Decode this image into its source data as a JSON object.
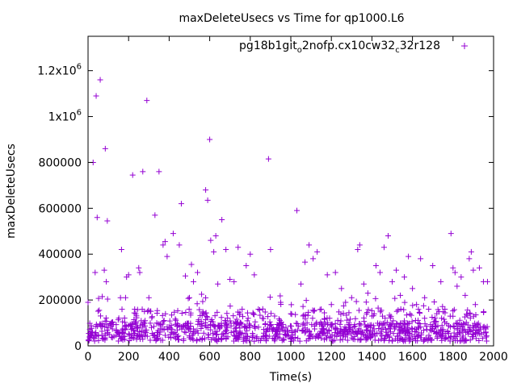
{
  "chart_data": {
    "type": "scatter",
    "title": "maxDeleteUsecs vs Time for qp1000.L6",
    "xlabel": "Time(s)",
    "ylabel": "maxDeleteUsecs",
    "xlim": [
      0,
      2000
    ],
    "ylim": [
      0,
      1350000
    ],
    "x_ticks": [
      {
        "value": 0,
        "label": "0"
      },
      {
        "value": 200,
        "label": "200"
      },
      {
        "value": 400,
        "label": "400"
      },
      {
        "value": 600,
        "label": "600"
      },
      {
        "value": 800,
        "label": "800"
      },
      {
        "value": 1000,
        "label": "1000"
      },
      {
        "value": 1200,
        "label": "1200"
      },
      {
        "value": 1400,
        "label": "1400"
      },
      {
        "value": 1600,
        "label": "1600"
      },
      {
        "value": 1800,
        "label": "1800"
      },
      {
        "value": 2000,
        "label": "2000"
      }
    ],
    "y_ticks": [
      {
        "value": 0,
        "label": "0"
      },
      {
        "value": 200000,
        "label": "200000"
      },
      {
        "value": 400000,
        "label": "400000"
      },
      {
        "value": 600000,
        "label": "600000"
      },
      {
        "value": 800000,
        "label": "800000"
      },
      {
        "value": 1000000,
        "label": "1x10",
        "exp": "6"
      },
      {
        "value": 1200000,
        "label": "1.2x10",
        "exp": "6"
      }
    ],
    "grid": false,
    "legend_position": "top-right",
    "marker": "plus",
    "color": "#9400d3",
    "series": [
      {
        "name_parts": [
          {
            "t": "pg18b1git"
          },
          {
            "t": "o",
            "sub": true
          },
          {
            "t": "2nofp.cx10cw32"
          },
          {
            "t": "c",
            "sub": true
          },
          {
            "t": "32r128"
          }
        ],
        "outliers": [
          [
            0,
            190000
          ],
          [
            25,
            800000
          ],
          [
            35,
            320000
          ],
          [
            40,
            1090000
          ],
          [
            45,
            560000
          ],
          [
            55,
            155000
          ],
          [
            60,
            1160000
          ],
          [
            70,
            215000
          ],
          [
            80,
            330000
          ],
          [
            85,
            860000
          ],
          [
            90,
            280000
          ],
          [
            95,
            545000
          ],
          [
            160,
            210000
          ],
          [
            165,
            420000
          ],
          [
            185,
            210000
          ],
          [
            190,
            300000
          ],
          [
            200,
            310000
          ],
          [
            220,
            745000
          ],
          [
            230,
            160000
          ],
          [
            250,
            340000
          ],
          [
            255,
            320000
          ],
          [
            270,
            760000
          ],
          [
            290,
            1070000
          ],
          [
            300,
            210000
          ],
          [
            330,
            570000
          ],
          [
            350,
            760000
          ],
          [
            370,
            440000
          ],
          [
            380,
            455000
          ],
          [
            390,
            390000
          ],
          [
            420,
            490000
          ],
          [
            450,
            440000
          ],
          [
            460,
            620000
          ],
          [
            480,
            305000
          ],
          [
            500,
            210000
          ],
          [
            510,
            355000
          ],
          [
            520,
            280000
          ],
          [
            540,
            320000
          ],
          [
            560,
            225000
          ],
          [
            580,
            680000
          ],
          [
            590,
            635000
          ],
          [
            600,
            900000
          ],
          [
            605,
            460000
          ],
          [
            620,
            410000
          ],
          [
            630,
            480000
          ],
          [
            640,
            270000
          ],
          [
            660,
            550000
          ],
          [
            680,
            420000
          ],
          [
            700,
            290000
          ],
          [
            720,
            280000
          ],
          [
            740,
            430000
          ],
          [
            760,
            160000
          ],
          [
            780,
            350000
          ],
          [
            800,
            400000
          ],
          [
            820,
            310000
          ],
          [
            840,
            160000
          ],
          [
            860,
            120000
          ],
          [
            890,
            815000
          ],
          [
            900,
            420000
          ],
          [
            920,
            130000
          ],
          [
            950,
            190000
          ],
          [
            1000,
            140000
          ],
          [
            1030,
            590000
          ],
          [
            1050,
            270000
          ],
          [
            1070,
            365000
          ],
          [
            1090,
            440000
          ],
          [
            1110,
            380000
          ],
          [
            1130,
            410000
          ],
          [
            1150,
            160000
          ],
          [
            1180,
            310000
          ],
          [
            1200,
            180000
          ],
          [
            1220,
            320000
          ],
          [
            1250,
            250000
          ],
          [
            1270,
            190000
          ],
          [
            1300,
            210000
          ],
          [
            1330,
            420000
          ],
          [
            1340,
            440000
          ],
          [
            1360,
            270000
          ],
          [
            1380,
            230000
          ],
          [
            1400,
            130000
          ],
          [
            1420,
            350000
          ],
          [
            1440,
            320000
          ],
          [
            1460,
            430000
          ],
          [
            1480,
            480000
          ],
          [
            1500,
            280000
          ],
          [
            1520,
            330000
          ],
          [
            1540,
            220000
          ],
          [
            1560,
            300000
          ],
          [
            1580,
            390000
          ],
          [
            1600,
            250000
          ],
          [
            1620,
            180000
          ],
          [
            1640,
            380000
          ],
          [
            1660,
            210000
          ],
          [
            1680,
            160000
          ],
          [
            1700,
            350000
          ],
          [
            1720,
            140000
          ],
          [
            1740,
            280000
          ],
          [
            1760,
            160000
          ],
          [
            1790,
            490000
          ],
          [
            1800,
            340000
          ],
          [
            1810,
            320000
          ],
          [
            1820,
            260000
          ],
          [
            1840,
            300000
          ],
          [
            1860,
            220000
          ],
          [
            1880,
            380000
          ],
          [
            1890,
            410000
          ],
          [
            1900,
            330000
          ],
          [
            1910,
            180000
          ],
          [
            1930,
            340000
          ],
          [
            1950,
            280000
          ],
          [
            1970,
            280000
          ]
        ],
        "band_samples": 1100,
        "band_typical_range": [
          20000,
          100000
        ],
        "band_x_range": [
          0,
          1970
        ]
      }
    ]
  }
}
